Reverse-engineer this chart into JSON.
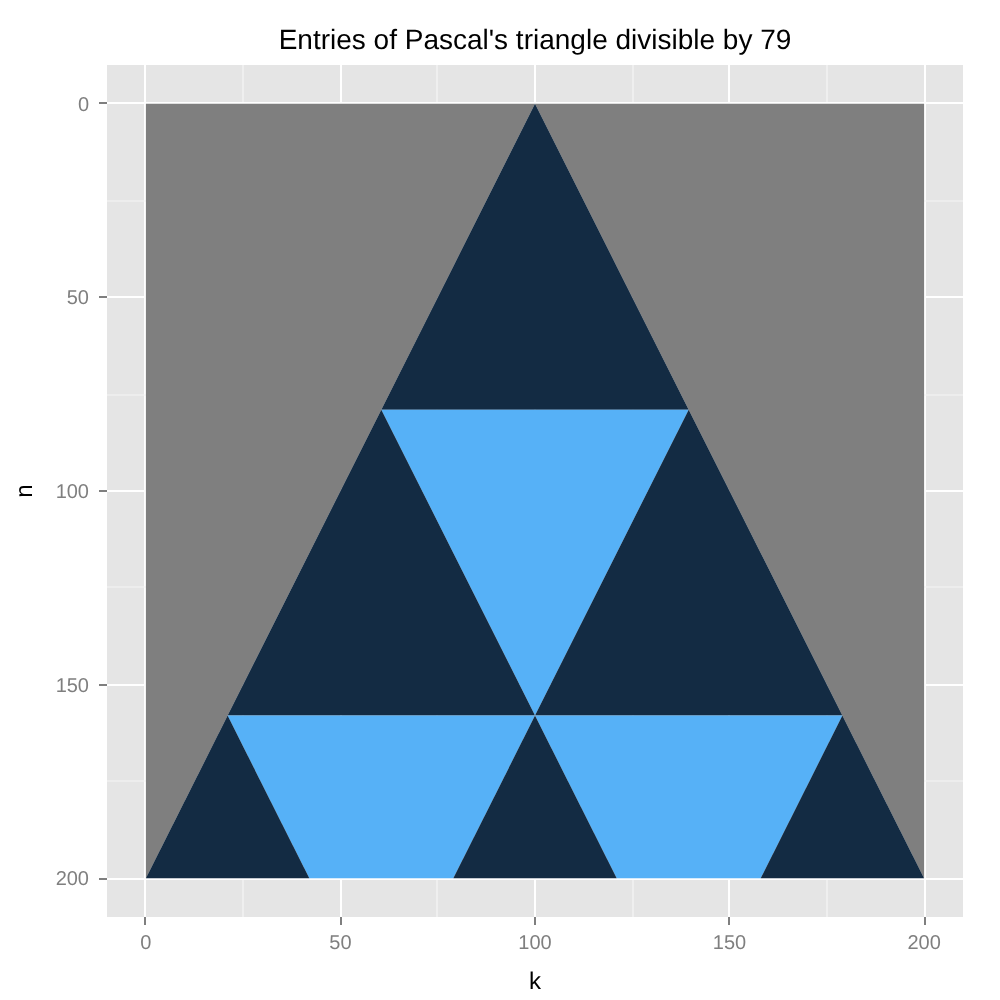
{
  "chart_data": {
    "type": "area",
    "stacked": true,
    "title": "Entries of Pascal's triangle divisible by 79",
    "xlabel": "k",
    "ylabel": "n",
    "xlim": [
      -10,
      210
    ],
    "ylim": [
      210,
      -10
    ],
    "xticks": [
      0,
      {
        "value": 25,
        "label": null
      },
      50,
      {
        "value": 75,
        "label": null
      },
      100,
      {
        "value": 125,
        "label": null
      },
      150,
      {
        "value": 175,
        "label": null
      },
      200
    ],
    "yticks": [
      0,
      {
        "value": 25,
        "label": null
      },
      50,
      {
        "value": 75,
        "label": null
      },
      100,
      {
        "value": 125,
        "label": null
      },
      150,
      {
        "value": 175,
        "label": null
      },
      200
    ],
    "grid": true,
    "x": [
      0,
      21,
      42,
      60.5,
      79,
      100,
      121,
      139.5,
      158,
      179,
      200
    ],
    "series": [
      {
        "color": "#7f7f7f",
        "values": [
          200,
          158,
          116,
          79,
          42,
          0,
          42,
          79,
          116,
          158,
          200
        ]
      },
      {
        "color": "#132b43",
        "values": [
          null,
          null,
          null,
          0,
          37,
          79,
          37,
          0,
          null,
          null,
          null
        ]
      },
      {
        "color": "#56b1f7",
        "values": [
          null,
          null,
          null,
          0,
          37,
          79,
          37,
          0,
          null,
          null,
          null
        ]
      },
      {
        "color": "#132b43",
        "values": [
          null,
          0,
          42,
          79,
          42,
          0,
          42,
          79,
          42,
          0,
          null
        ]
      },
      {
        "color": "#56b1f7",
        "values": [
          null,
          0,
          42,
          42,
          42,
          0,
          42,
          42,
          42,
          0,
          null
        ]
      },
      {
        "color": "#132b43",
        "values": [
          0,
          42,
          0,
          null,
          null,
          null,
          null,
          null,
          null,
          null,
          null
        ]
      },
      {
        "color": "#132b43",
        "values": [
          null,
          null,
          null,
          null,
          0,
          42,
          0,
          null,
          null,
          null,
          null
        ]
      },
      {
        "color": "#132b43",
        "values": [
          null,
          null,
          null,
          null,
          null,
          null,
          null,
          null,
          0,
          42,
          0
        ]
      }
    ]
  }
}
